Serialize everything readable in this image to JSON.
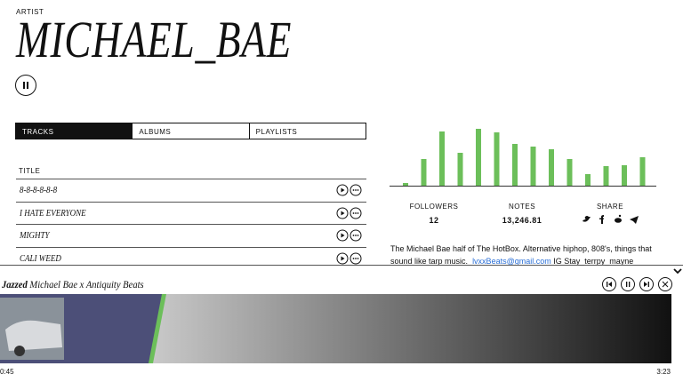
{
  "header": {
    "label": "ARTIST",
    "title": "MICHAEL_BAE"
  },
  "tabs": [
    "TRACKS",
    "ALBUMS",
    "PLAYLISTS"
  ],
  "tracks": {
    "column": "TITLE",
    "rows": [
      "8-8-8-8-8-8",
      "I HATE EVERYONE",
      "MIGHTY",
      "CALI WEED"
    ]
  },
  "activity": {
    "color": "#6cbf5a",
    "values": [
      3,
      30,
      61,
      37,
      64,
      60,
      47,
      44,
      41,
      30,
      13,
      22,
      23,
      32
    ]
  },
  "stats": [
    {
      "label": "FOLLOWERS",
      "value": 12
    },
    {
      "label": "NOTES",
      "value": "13,246.81"
    },
    {
      "label": "SHARE"
    }
  ],
  "bio": {
    "text": "The Michael Bae half of The HotBox. Alternative hiphop, 808's, things that sound like tarp music.",
    "email": "lvxxBeats@gmail.com",
    "after": "IG Stay_terrpy_mayne"
  },
  "player": {
    "title": "Jazzed",
    "artist": "Michael Bae x Antiquity Beats",
    "elapsed": "0:45",
    "duration": "3:23"
  }
}
